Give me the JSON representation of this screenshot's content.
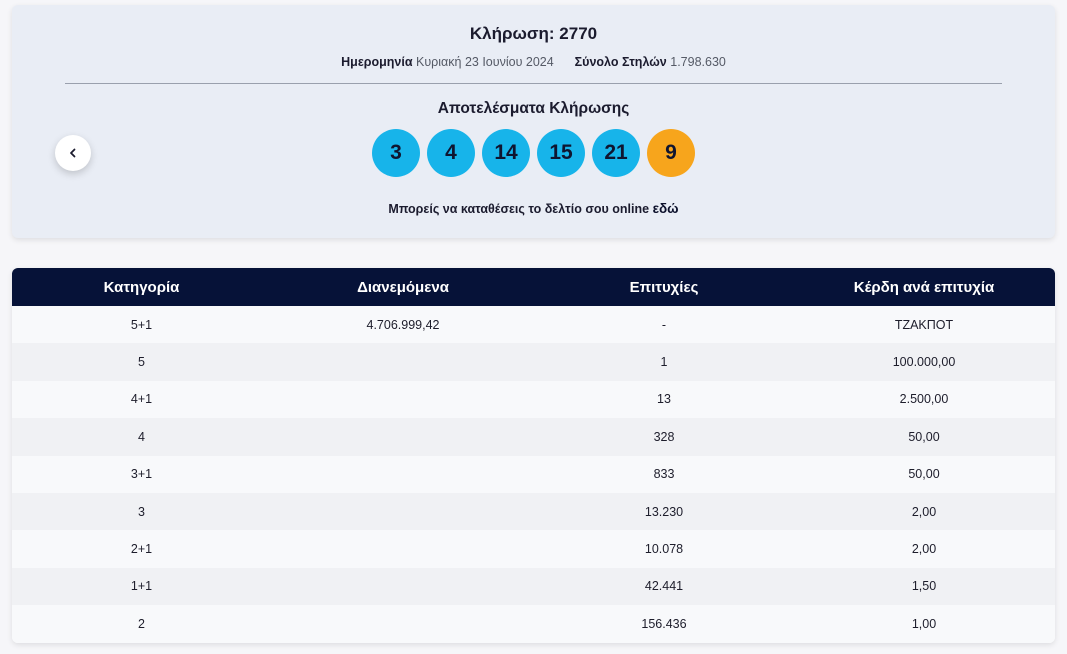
{
  "draw": {
    "title": "Κλήρωση: 2770",
    "date_label": "Ημερομηνία",
    "date_value": "Κυριακή 23 Ιουνίου 2024",
    "columns_label": "Σύνολο Στηλών",
    "columns_value": "1.798.630",
    "results_title": "Αποτελέσματα Κλήρωσης",
    "numbers": [
      "3",
      "4",
      "14",
      "15",
      "21"
    ],
    "joker": "9",
    "online_text": "Μπορείς να καταθέσεις το δελτίο σου online",
    "online_link": "εδώ",
    "colors": {
      "main_ball": "#17b4ea",
      "joker_ball": "#f7a51c",
      "header": "#061238"
    }
  },
  "table": {
    "headers": [
      "Κατηγορία",
      "Διανεμόμενα",
      "Επιτυχίες",
      "Κέρδη ανά επιτυχία"
    ],
    "rows": [
      [
        "5+1",
        "4.706.999,42",
        "-",
        "ΤΖΑΚΠΟΤ"
      ],
      [
        "5",
        "",
        "1",
        "100.000,00"
      ],
      [
        "4+1",
        "",
        "13",
        "2.500,00"
      ],
      [
        "4",
        "",
        "328",
        "50,00"
      ],
      [
        "3+1",
        "",
        "833",
        "50,00"
      ],
      [
        "3",
        "",
        "13.230",
        "2,00"
      ],
      [
        "2+1",
        "",
        "10.078",
        "2,00"
      ],
      [
        "1+1",
        "",
        "42.441",
        "1,50"
      ],
      [
        "2",
        "",
        "156.436",
        "1,00"
      ]
    ]
  }
}
